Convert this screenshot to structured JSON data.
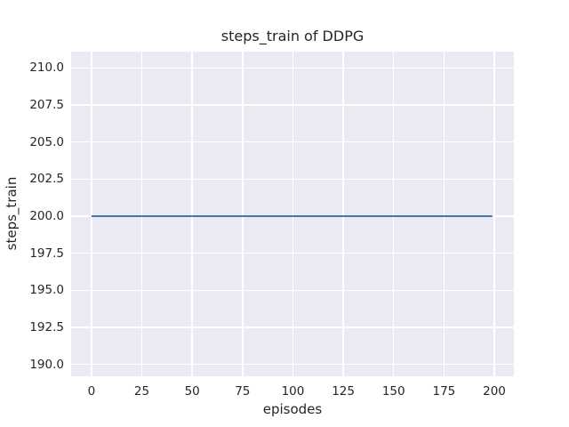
{
  "colors": {
    "figure_bg": "#ffffff",
    "plot_bg": "#eaeaf2",
    "grid": "#ffffff",
    "text": "#262626",
    "line": "#4c72b0"
  },
  "chart_data": {
    "type": "line",
    "title": "steps_train of DDPG",
    "xlabel": "episodes",
    "ylabel": "steps_train",
    "xlim": [
      -10.1,
      209.7
    ],
    "ylim": [
      189.2,
      211.1
    ],
    "xticks": [
      0,
      25,
      50,
      75,
      100,
      125,
      150,
      175,
      200
    ],
    "yticks": [
      190.0,
      192.5,
      195.0,
      197.5,
      200.0,
      202.5,
      205.0,
      207.5,
      210.0
    ],
    "ytick_decimals": 1,
    "grid": true,
    "legend_position": "none",
    "series": [
      {
        "name": "DDPG steps_train",
        "color": "#4c72b0",
        "x": [
          0,
          199
        ],
        "y": [
          200,
          200
        ]
      }
    ]
  }
}
